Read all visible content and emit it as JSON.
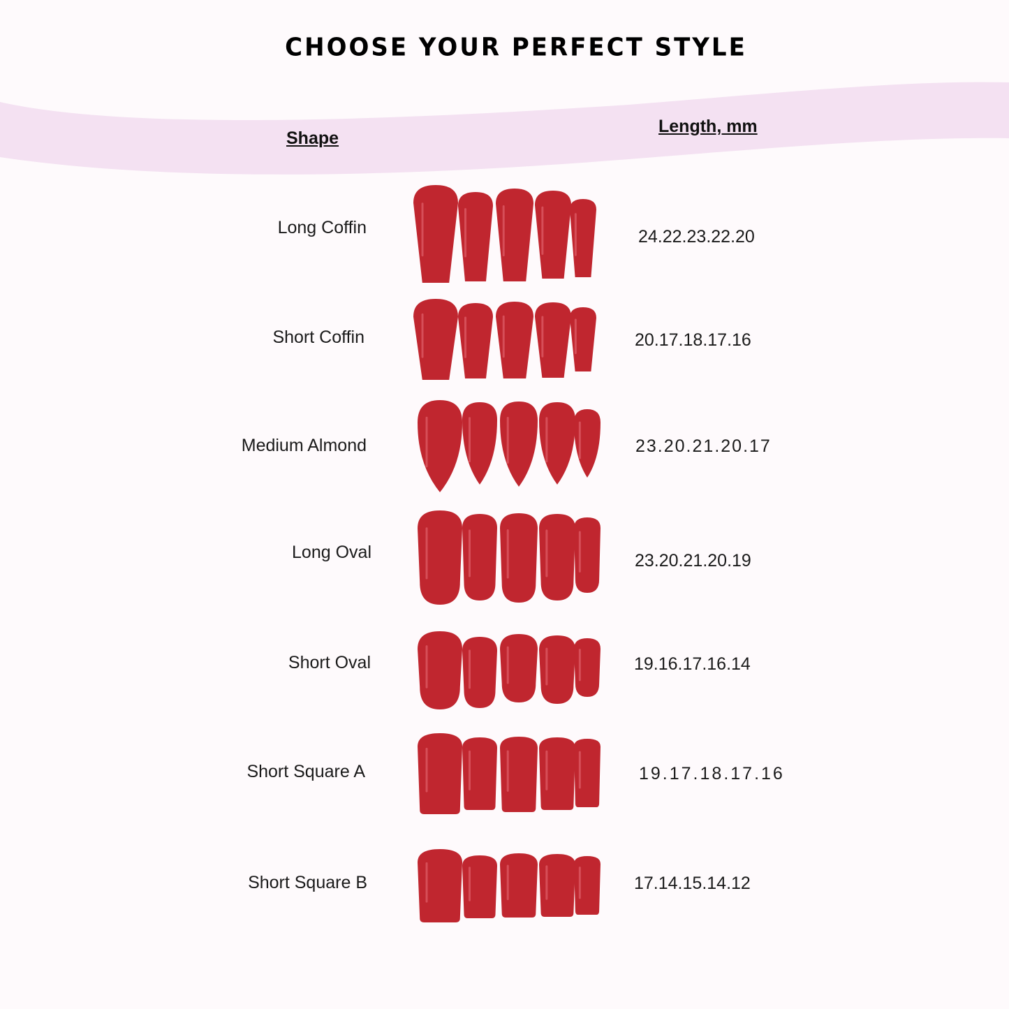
{
  "title": "CHOOSE YOUR PERFECT STYLE",
  "headers": {
    "shape": "Shape",
    "length": "Length, mm"
  },
  "colors": {
    "band": "#f4e1f2",
    "nail": "#c0262f",
    "nail_highlight": "#e8707a",
    "background": "#fefafc"
  },
  "rows": [
    {
      "shape": "Long Coffin",
      "lengths": "24.22.23.22.20",
      "nail_shape": "coffin"
    },
    {
      "shape": "Short Coffin",
      "lengths": "20.17.18.17.16",
      "nail_shape": "coffin"
    },
    {
      "shape": "Medium Almond",
      "lengths": "23.20.21.20.17",
      "nail_shape": "almond"
    },
    {
      "shape": "Long Oval",
      "lengths": "23.20.21.20.19",
      "nail_shape": "oval"
    },
    {
      "shape": "Short Oval",
      "lengths": "19.16.17.16.14",
      "nail_shape": "oval"
    },
    {
      "shape": "Short Square A",
      "lengths": "19.17.18.17.16",
      "nail_shape": "square"
    },
    {
      "shape": "Short Square B",
      "lengths": "17.14.15.14.12",
      "nail_shape": "square"
    }
  ]
}
